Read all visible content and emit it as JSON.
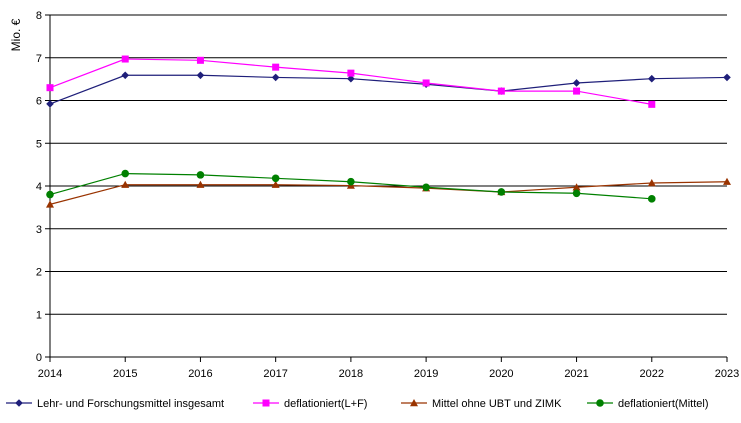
{
  "chart_data": {
    "type": "line",
    "title": "",
    "xlabel": "",
    "ylabel": "Mio. €",
    "ylim": [
      0,
      8
    ],
    "y_ticks": [
      0,
      1,
      2,
      3,
      4,
      5,
      6,
      7,
      8
    ],
    "x_labels": [
      "2014",
      "2015",
      "2016",
      "2017",
      "2018",
      "2019",
      "2020",
      "2021",
      "2022",
      "2023"
    ],
    "grid": "horizontal",
    "legend_position": "bottom",
    "series": [
      {
        "name": "Lehr- und Forschungsmittel insgesamt",
        "color": "#1F1F7A",
        "marker": "diamond",
        "values": [
          5.92,
          6.59,
          6.59,
          6.54,
          6.51,
          6.38,
          6.22,
          6.41,
          6.51,
          6.54
        ]
      },
      {
        "name": "deflationiert(L+F)",
        "color": "#FF00FF",
        "marker": "square",
        "values": [
          6.3,
          6.97,
          6.94,
          6.78,
          6.64,
          6.41,
          6.22,
          6.22,
          5.91,
          null
        ]
      },
      {
        "name": "Mittel ohne UBT und ZIMK",
        "color": "#993300",
        "marker": "triangle",
        "values": [
          3.57,
          4.03,
          4.03,
          4.03,
          4.01,
          3.95,
          3.86,
          3.97,
          4.07,
          4.1
        ]
      },
      {
        "name": "deflationiert(Mittel)",
        "color": "#008000",
        "marker": "circle",
        "values": [
          3.8,
          4.29,
          4.26,
          4.18,
          4.1,
          3.97,
          3.86,
          3.83,
          3.7,
          null
        ]
      }
    ]
  }
}
